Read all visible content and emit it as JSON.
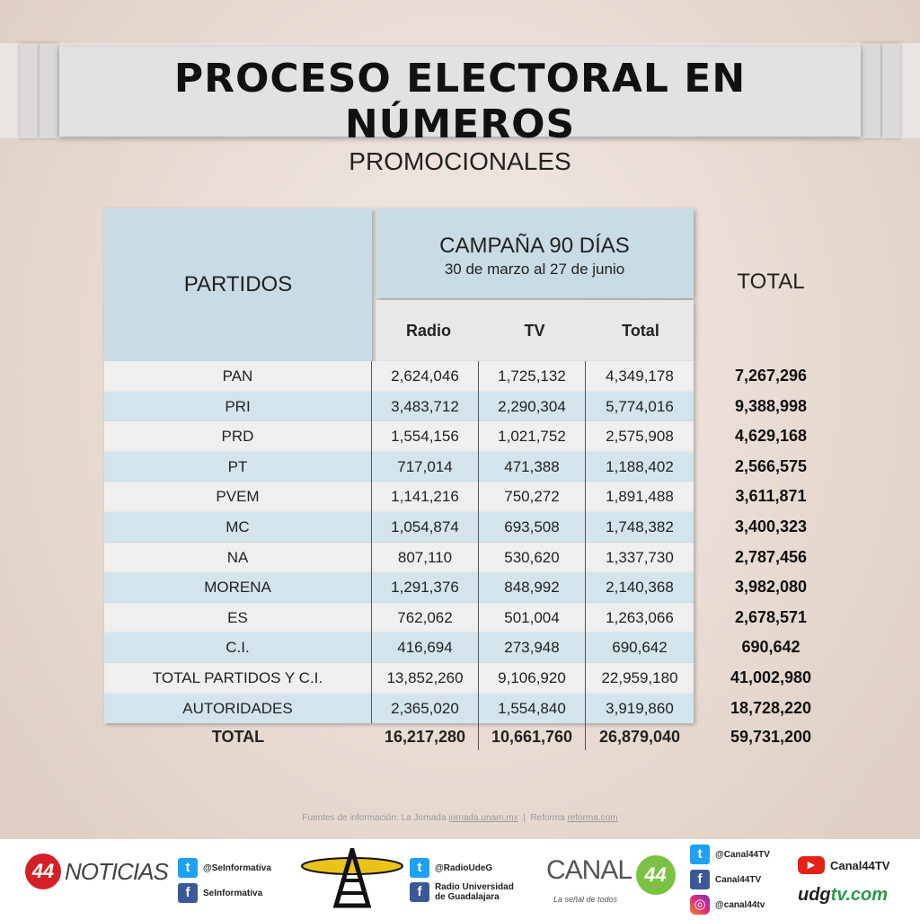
{
  "header": {
    "title": "PROCESO ELECTORAL EN NÚMEROS",
    "subtitle": "PROMOCIONALES"
  },
  "table": {
    "partidos_header": "PARTIDOS",
    "campaign_title": "CAMPAÑA 90 DÍAS",
    "campaign_dates": "30 de marzo al 27 de junio",
    "col_radio": "Radio",
    "col_tv": "TV",
    "col_total": "Total",
    "total_header": "TOTAL",
    "rows": [
      {
        "party": "PAN",
        "radio": "2,624,046",
        "tv": "1,725,132",
        "total": "4,349,178",
        "grand": "7,267,296"
      },
      {
        "party": "PRI",
        "radio": "3,483,712",
        "tv": "2,290,304",
        "total": "5,774,016",
        "grand": "9,388,998"
      },
      {
        "party": "PRD",
        "radio": "1,554,156",
        "tv": "1,021,752",
        "total": "2,575,908",
        "grand": "4,629,168"
      },
      {
        "party": "PT",
        "radio": "717,014",
        "tv": "471,388",
        "total": "1,188,402",
        "grand": "2,566,575"
      },
      {
        "party": "PVEM",
        "radio": "1,141,216",
        "tv": "750,272",
        "total": "1,891,488",
        "grand": "3,611,871"
      },
      {
        "party": "MC",
        "radio": "1,054,874",
        "tv": "693,508",
        "total": "1,748,382",
        "grand": "3,400,323"
      },
      {
        "party": "NA",
        "radio": "807,110",
        "tv": "530,620",
        "total": "1,337,730",
        "grand": "2,787,456"
      },
      {
        "party": "MORENA",
        "radio": "1,291,376",
        "tv": "848,992",
        "total": "2,140,368",
        "grand": "3,982,080"
      },
      {
        "party": "ES",
        "radio": "762,062",
        "tv": "501,004",
        "total": "1,263,066",
        "grand": "2,678,571"
      },
      {
        "party": "C.I.",
        "radio": "416,694",
        "tv": "273,948",
        "total": "690,642",
        "grand": "690,642"
      },
      {
        "party": "TOTAL PARTIDOS Y C.I.",
        "radio": "13,852,260",
        "tv": "9,106,920",
        "total": "22,959,180",
        "grand": "41,002,980"
      },
      {
        "party": "AUTORIDADES",
        "radio": "2,365,020",
        "tv": "1,554,840",
        "total": "3,919,860",
        "grand": "18,728,220"
      }
    ],
    "totals": {
      "label": "TOTAL",
      "radio": "16,217,280",
      "tv": "10,661,760",
      "total": "26,879,040",
      "grand": "59,731,200"
    }
  },
  "sources": {
    "prefix": "Fuentes de información: La Jornada",
    "jornada_link": "jornada.unam.mx",
    "separator": "|",
    "reforma_text": "Reforma",
    "reforma_link": "reforma.com"
  },
  "footer": {
    "noticias_badge": "44",
    "noticias_word": "NOTICIAS",
    "sei_twitter": "@SeInformativa",
    "sei_facebook": "SeInformativa",
    "radio_twitter": "@RadioUdeG",
    "radio_facebook_1": "Radio Universidad",
    "radio_facebook_2": "de Guadalajara",
    "canal_word": "CANAL",
    "canal_badge": "44",
    "canal_tagline": "La señal de todos",
    "c44_twitter": "@Canal44TV",
    "c44_facebook": "Canal44TV",
    "c44_instagram": "@canal44tv",
    "youtube": "Canal44TV",
    "udgtv_prefix": "udg",
    "udgtv_suffix": "tv.com",
    "icons": [
      "twitter-icon",
      "facebook-icon",
      "instagram-icon",
      "youtube-icon",
      "radio-tower-icon"
    ]
  }
}
